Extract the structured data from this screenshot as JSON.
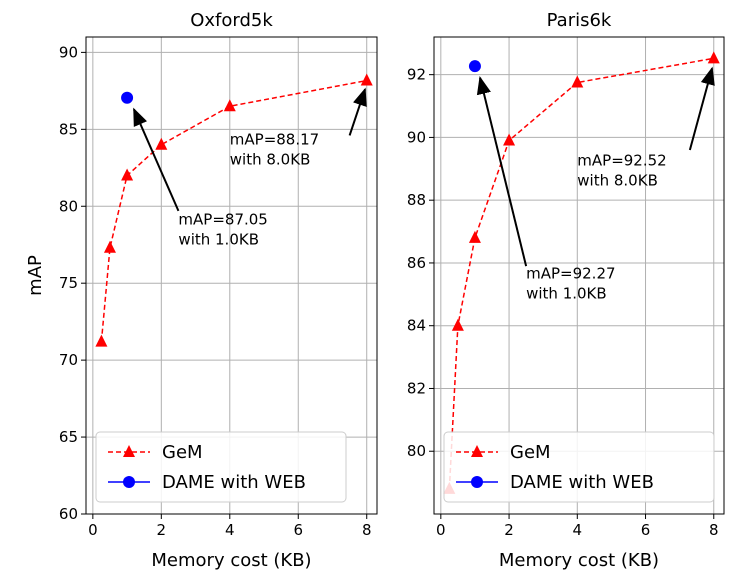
{
  "chart_data": [
    {
      "type": "line",
      "title": "Oxford5k",
      "xlabel": "Memory cost (KB)",
      "ylabel": "mAP",
      "xlim": [
        -0.2,
        8.3
      ],
      "ylim": [
        60,
        91
      ],
      "xticks": [
        0,
        2,
        4,
        6,
        8
      ],
      "yticks": [
        60,
        65,
        70,
        75,
        80,
        85,
        90
      ],
      "grid": true,
      "legend": "lower-left",
      "series": [
        {
          "name": "GeM",
          "color": "#ff0000",
          "marker": "triangle",
          "linestyle": "dashed",
          "x": [
            0.25,
            0.5,
            1,
            2,
            4,
            8
          ],
          "y": [
            71.2,
            77.3,
            82.0,
            84.0,
            86.5,
            88.17
          ]
        },
        {
          "name": "DAME with WEB",
          "color": "#0000ff",
          "marker": "circle",
          "linestyle": "solid",
          "x": [
            1
          ],
          "y": [
            87.05
          ]
        }
      ],
      "annotations": [
        {
          "lines": [
            "mAP=87.05",
            "with 1.0KB"
          ],
          "text_x": 2.5,
          "text_y": 78.8,
          "arrow_from": [
            2.5,
            79.7
          ],
          "arrow_to": [
            1.2,
            86.3
          ]
        },
        {
          "lines": [
            "mAP=88.17",
            "with 8.0KB"
          ],
          "text_x": 4.0,
          "text_y": 84.0,
          "arrow_from": [
            7.5,
            84.6
          ],
          "arrow_to": [
            7.95,
            87.6
          ]
        }
      ]
    },
    {
      "type": "line",
      "title": "Paris6k",
      "xlabel": "Memory cost (KB)",
      "ylabel": "",
      "xlim": [
        -0.2,
        8.3
      ],
      "ylim": [
        78,
        93.2
      ],
      "xticks": [
        0,
        2,
        4,
        6,
        8
      ],
      "yticks": [
        80,
        82,
        84,
        86,
        88,
        90,
        92
      ],
      "grid": true,
      "legend": "lower-left",
      "series": [
        {
          "name": "GeM",
          "color": "#ff0000",
          "marker": "triangle",
          "linestyle": "dashed",
          "x": [
            0.25,
            0.5,
            1,
            2,
            4,
            8
          ],
          "y": [
            78.8,
            84.0,
            86.8,
            89.9,
            91.75,
            92.52
          ]
        },
        {
          "name": "DAME with WEB",
          "color": "#0000ff",
          "marker": "circle",
          "linestyle": "solid",
          "x": [
            1
          ],
          "y": [
            92.27
          ]
        }
      ],
      "annotations": [
        {
          "lines": [
            "mAP=92.27",
            "with 1.0KB"
          ],
          "text_x": 2.5,
          "text_y": 85.5,
          "arrow_from": [
            2.5,
            85.9
          ],
          "arrow_to": [
            1.15,
            91.9
          ]
        },
        {
          "lines": [
            "mAP=92.52",
            "with 8.0KB"
          ],
          "text_x": 4.0,
          "text_y": 89.1,
          "arrow_from": [
            7.3,
            89.6
          ],
          "arrow_to": [
            7.95,
            92.2
          ]
        }
      ]
    }
  ]
}
